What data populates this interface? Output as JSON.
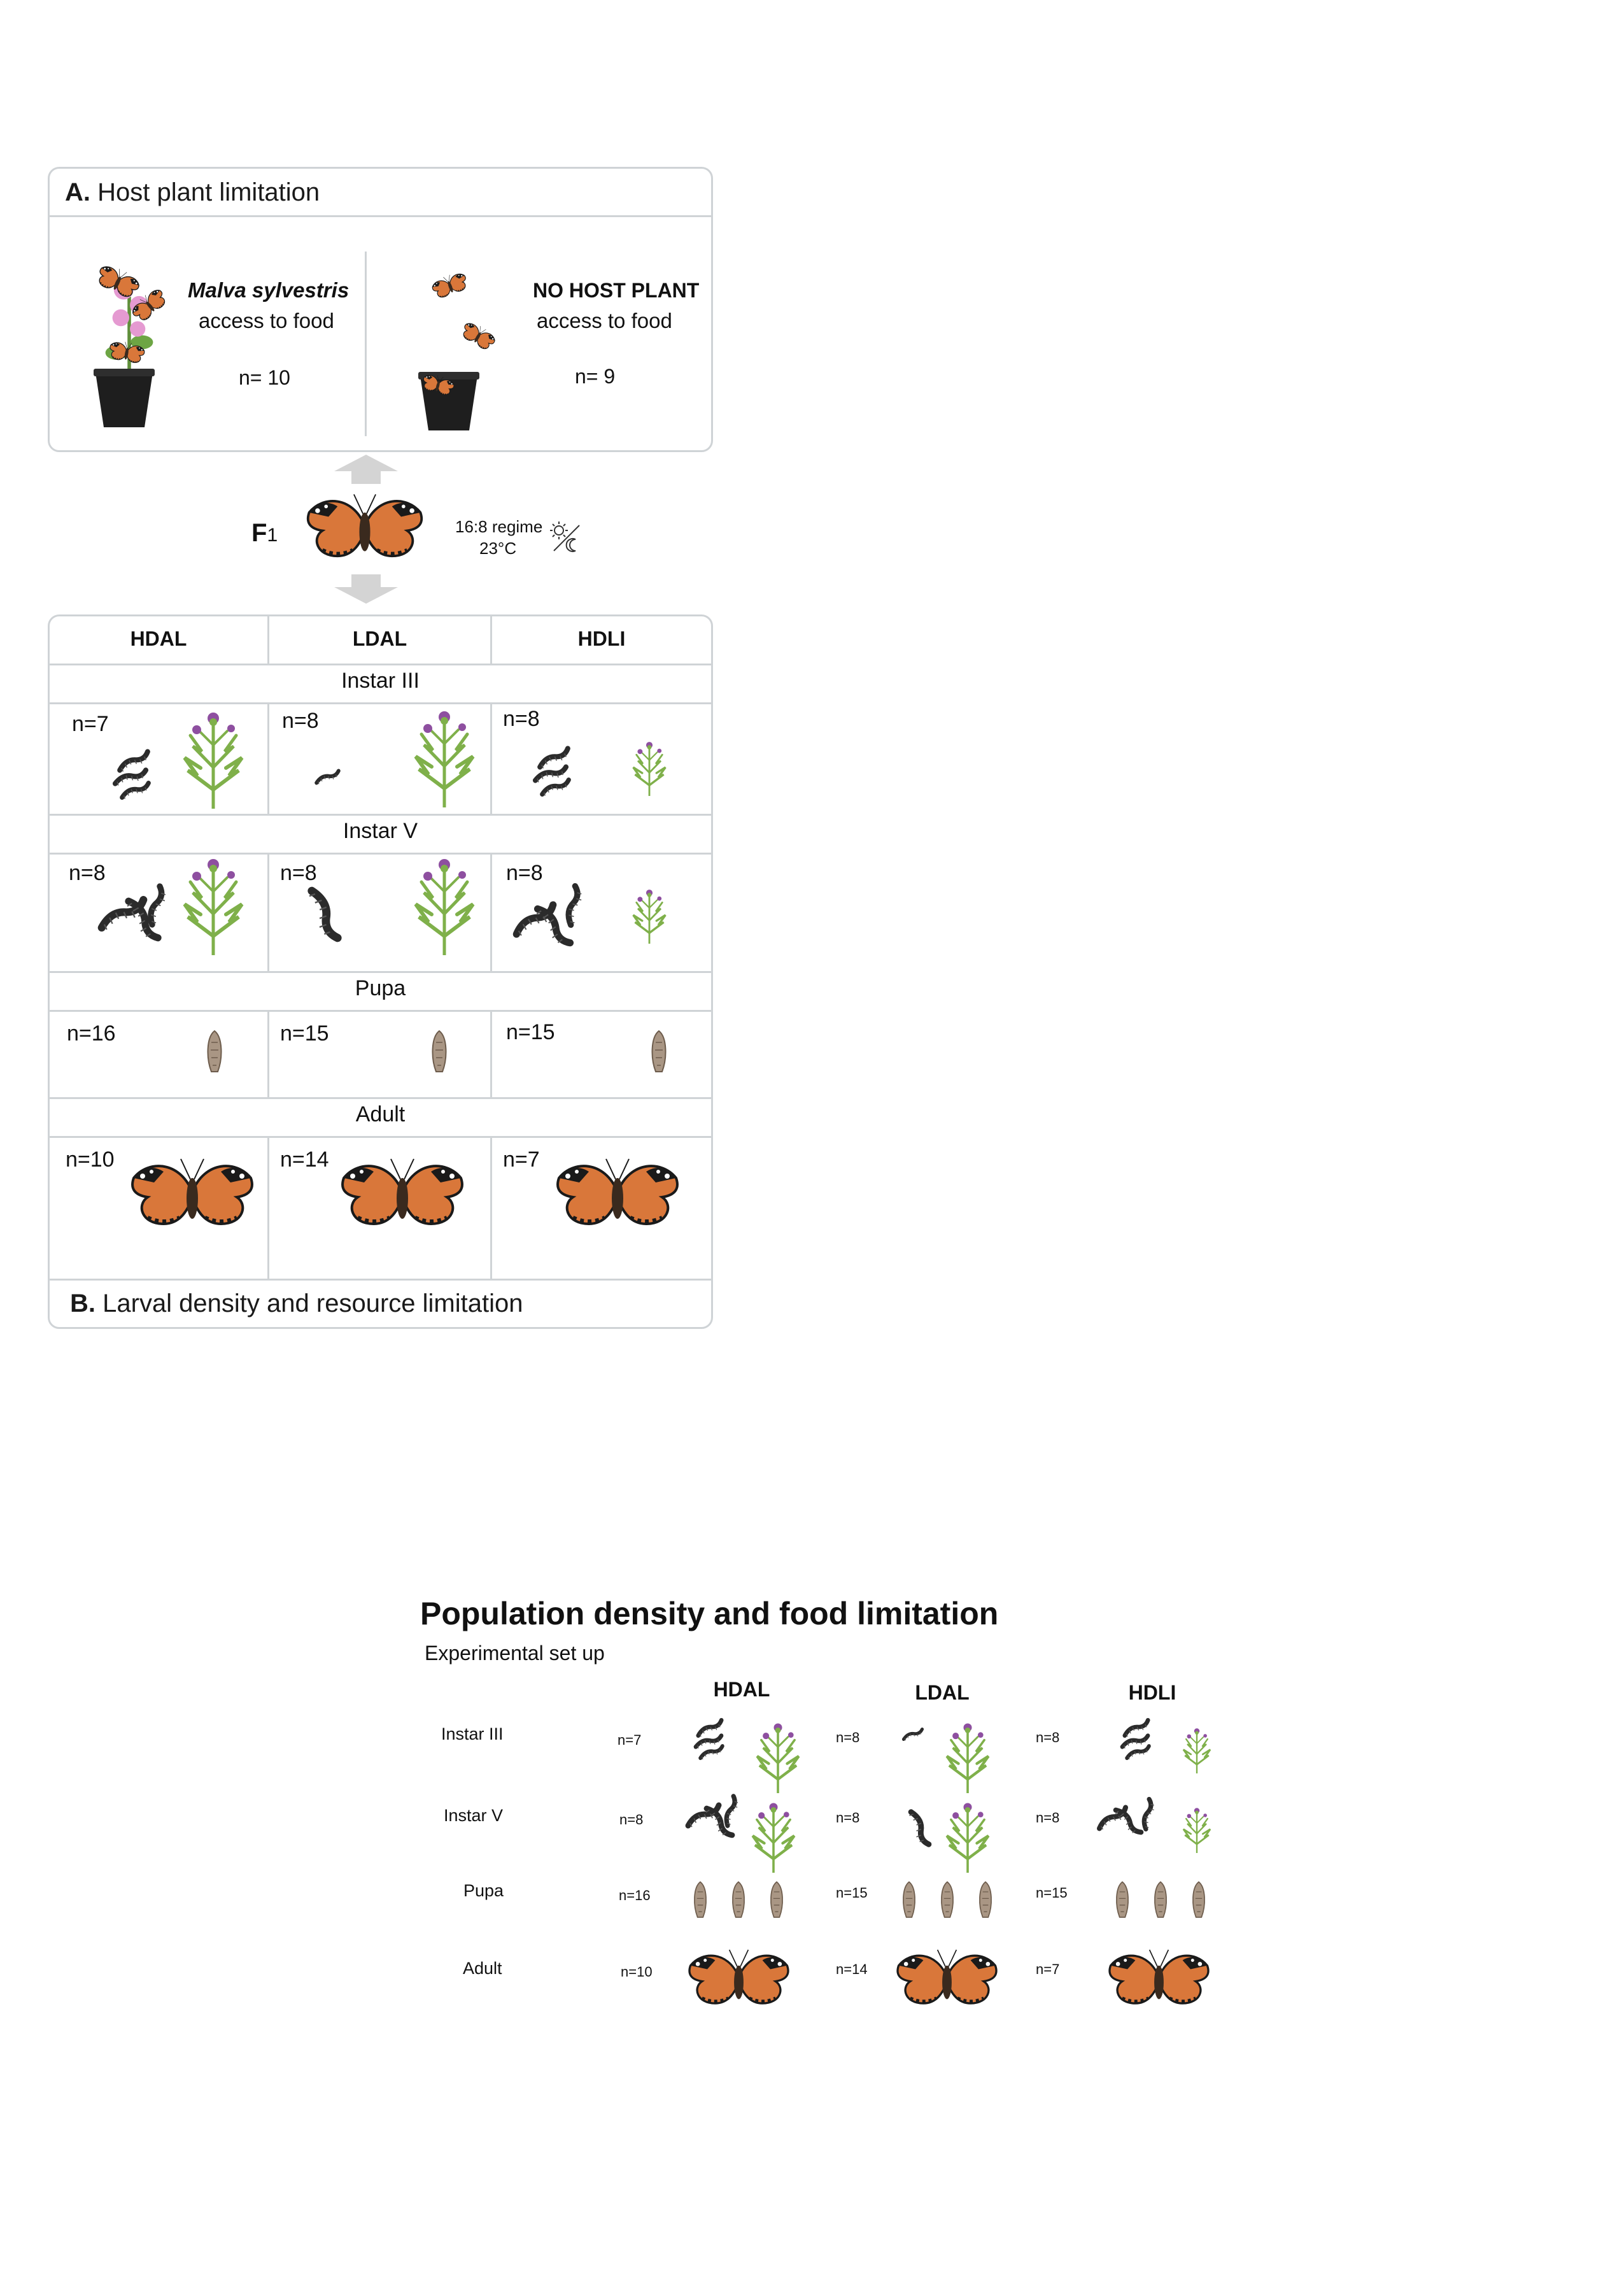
{
  "panelA": {
    "letter": "A.",
    "title": "Host plant limitation",
    "left": {
      "species": "Malva sylvestris",
      "access": "access to food",
      "n": "n= 10"
    },
    "right": {
      "label": "NO HOST PLANT",
      "access": "access to food",
      "n": "n= 9"
    }
  },
  "f1": {
    "label": "F",
    "sub": "1",
    "regime": "16:8 regime",
    "temp": "23°C"
  },
  "panelB": {
    "letter": "B.",
    "title": "Larval density and resource limitation",
    "columns": [
      "HDAL",
      "LDAL",
      "HDLI"
    ],
    "stages": [
      "Instar III",
      "Instar V",
      "Pupa",
      "Adult"
    ],
    "counts": [
      [
        "n=7",
        "n=8",
        "n=8"
      ],
      [
        "n=8",
        "n=8",
        "n=8"
      ],
      [
        "n=16",
        "n=15",
        "n=15"
      ],
      [
        "n=10",
        "n=14",
        "n=7"
      ]
    ]
  },
  "bottom": {
    "title": "Population density and food limitation",
    "subtitle": "Experimental set up",
    "columns": [
      "HDAL",
      "LDAL",
      "HDLI"
    ],
    "stages": [
      "Instar III",
      "Instar V",
      "Pupa",
      "Adult"
    ],
    "counts": [
      [
        "n=7",
        "n=8",
        "n=8"
      ],
      [
        "n=8",
        "n=8",
        "n=8"
      ],
      [
        "n=16",
        "n=15",
        "n=15"
      ],
      [
        "n=10",
        "n=14",
        "n=7"
      ]
    ]
  },
  "colors": {
    "border": "#cfd3d6",
    "arrow": "#d4d4d4",
    "wing": "#d9773a",
    "plant": "#7fb04a",
    "thistle": "#8e4fa0",
    "pupa": "#a99684"
  }
}
